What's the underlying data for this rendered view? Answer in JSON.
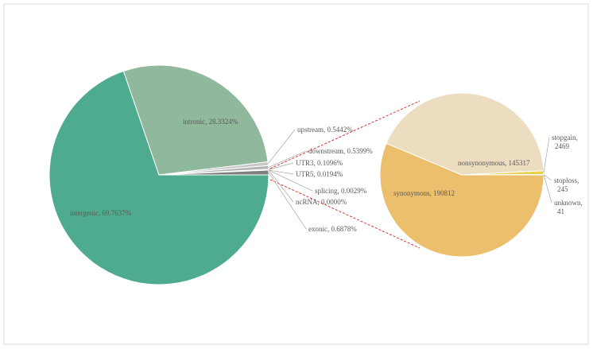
{
  "chart_data": [
    {
      "type": "pie",
      "labels": [
        "intergenic, 69.7637%",
        "intronic, 28.3324%",
        "upstream, 0.5442%",
        "downstream, 0.5399%",
        "UTR3, 0.1096%",
        "UTR5, 0.0194%",
        "splicing, 0.0029%",
        "ncRNA, 0.0000%",
        "exonic, 0.6878%"
      ],
      "values": [
        69.7637,
        28.3324,
        0.5442,
        0.5399,
        0.1096,
        0.0194,
        0.0029,
        0.0,
        0.6878
      ],
      "colors": [
        "#4fab8f",
        "#8fb89c",
        "#c8c8c8",
        "#b4b4b4",
        "#a0a0a0",
        "#8c8c8c",
        "#787878",
        "#646464",
        "#7f7f7f"
      ]
    },
    {
      "type": "pie",
      "labels": [
        "synonymous, 190812",
        "nonsynonymous, 145317",
        "stopgain, 2469",
        "stoploss, 245",
        "unknown, 41"
      ],
      "values": [
        190812,
        145317,
        2469,
        245,
        41
      ],
      "colors": [
        "#ecbf6c",
        "#ecdcc0",
        "#e6d24a",
        "#f0e28e",
        "#f4ebb8"
      ]
    }
  ]
}
